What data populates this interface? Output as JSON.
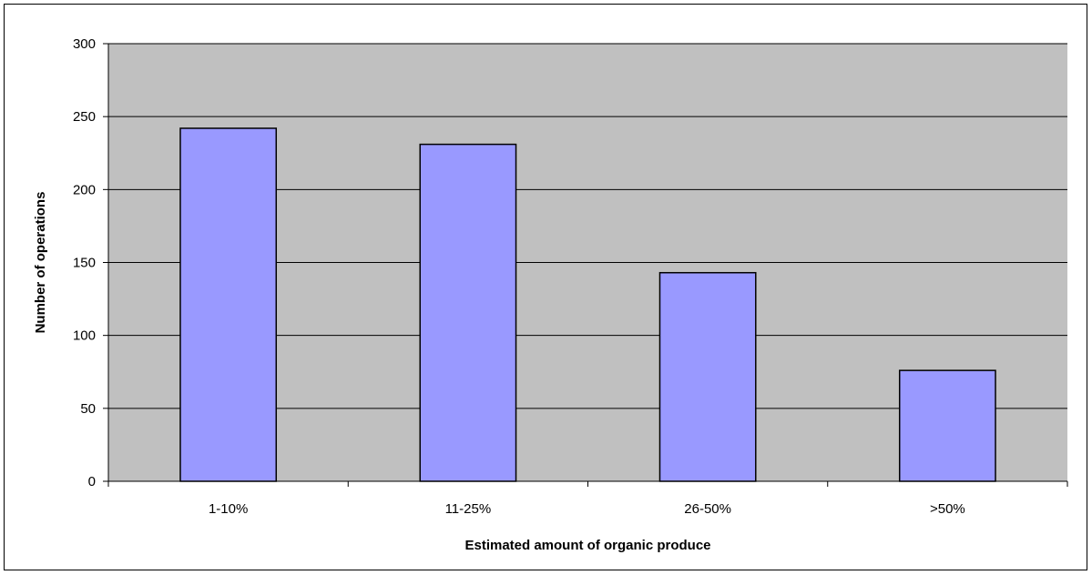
{
  "chart_data": {
    "type": "bar",
    "title": "",
    "xlabel": "Estimated amount of organic produce",
    "ylabel": "Number of operations",
    "categories": [
      "1-10%",
      "11-25%",
      "26-50%",
      ">50%"
    ],
    "values": [
      242,
      231,
      143,
      76
    ],
    "ylim": [
      0,
      300
    ],
    "yticks": [
      0,
      50,
      100,
      150,
      200,
      250,
      300
    ],
    "grid": true,
    "legend": "none",
    "colors": {
      "plot_background": "#c0c0c0",
      "bar_fill": "#9999ff",
      "bar_stroke": "#000000",
      "gridline": "#000000"
    }
  }
}
